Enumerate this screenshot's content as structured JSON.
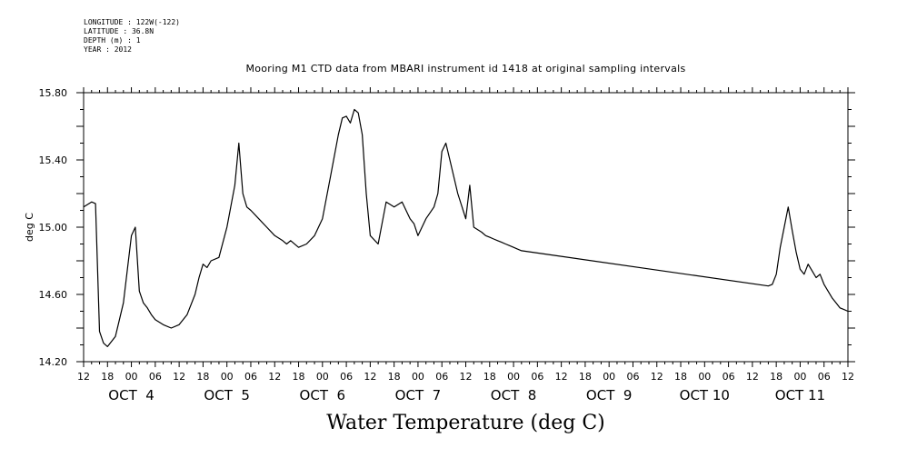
{
  "meta": {
    "longitude": "LONGITUDE : 122W(-122)",
    "latitude": "LATITUDE : 36.8N",
    "depth": "DEPTH (m) : 1",
    "year": "YEAR : 2012"
  },
  "chart_data": {
    "type": "line",
    "title": "Mooring M1 CTD data from MBARI instrument id 1418 at original sampling intervals",
    "xlabel": "Water Temperature (deg C)",
    "ylabel": "deg C",
    "ylim": [
      14.2,
      15.8
    ],
    "xlim": [
      "2012-10-03T12:00",
      "2012-10-11T12:00"
    ],
    "grid": false,
    "y_ticks": [
      "14.20",
      "14.60",
      "15.00",
      "15.40",
      "15.80"
    ],
    "x_hour_ticks": [
      "12",
      "18",
      "00",
      "06",
      "12",
      "18",
      "00",
      "06",
      "12",
      "18",
      "00",
      "06",
      "12",
      "18",
      "00",
      "06",
      "12",
      "18",
      "00",
      "06",
      "12",
      "18",
      "00",
      "06",
      "12",
      "18",
      "00",
      "06",
      "12",
      "18",
      "00",
      "06",
      "12"
    ],
    "x_day_labels": [
      "OCT  4",
      "OCT  5",
      "OCT  6",
      "OCT  7",
      "OCT  8",
      "OCT  9",
      "OCT 10",
      "OCT 11"
    ],
    "series": [
      {
        "x": [
          "10-03 12:00",
          "10-03 14:00",
          "10-03 15:00",
          "10-03 16:00",
          "10-03 17:00",
          "10-03 18:00",
          "10-03 19:00",
          "10-03 20:00",
          "10-03 21:00",
          "10-03 22:00",
          "10-03 23:00",
          "10-04 00:00",
          "10-04 01:00",
          "10-04 02:00",
          "10-04 03:00",
          "10-04 04:00",
          "10-04 05:00",
          "10-04 06:00",
          "10-04 08:00",
          "10-04 10:00",
          "10-04 12:00",
          "10-04 14:00",
          "10-04 16:00",
          "10-04 17:00",
          "10-04 18:00",
          "10-04 19:00",
          "10-04 20:00",
          "10-04 22:00",
          "10-05 00:00",
          "10-05 02:00",
          "10-05 03:00",
          "10-05 04:00",
          "10-05 05:00",
          "10-05 06:00",
          "10-05 08:00",
          "10-05 10:00",
          "10-05 12:00",
          "10-05 14:00",
          "10-05 15:00",
          "10-05 16:00",
          "10-05 18:00",
          "10-05 20:00",
          "10-05 22:00",
          "10-06 00:00",
          "10-06 02:00",
          "10-06 04:00",
          "10-06 05:00",
          "10-06 06:00",
          "10-06 07:00",
          "10-06 08:00",
          "10-06 09:00",
          "10-06 10:00",
          "10-06 11:00",
          "10-06 12:00",
          "10-06 14:00",
          "10-06 16:00",
          "10-06 18:00",
          "10-06 20:00",
          "10-06 21:00",
          "10-06 22:00",
          "10-06 23:00",
          "10-07 00:00",
          "10-07 02:00",
          "10-07 04:00",
          "10-07 05:00",
          "10-07 06:00",
          "10-07 07:00",
          "10-07 08:00",
          "10-07 10:00",
          "10-07 12:00",
          "10-07 13:00",
          "10-07 14:00",
          "10-07 16:00",
          "10-07 17:00",
          "10-07 18:00",
          "10-07 19:00",
          "10-07 20:00",
          "10-07 21:00",
          "10-07 22:00",
          "10-07 23:00",
          "10-08 00:00",
          "10-08 01:00",
          "10-08 02:00",
          "10-10 16:00",
          "10-10 17:00",
          "10-10 18:00",
          "10-10 19:00",
          "10-10 20:00",
          "10-10 21:00",
          "10-10 22:00",
          "10-10 23:00",
          "10-11 00:00",
          "10-11 01:00",
          "10-11 02:00",
          "10-11 03:00",
          "10-11 04:00",
          "10-11 05:00",
          "10-11 06:00",
          "10-11 07:00",
          "10-11 08:00",
          "10-11 09:00",
          "10-11 10:00",
          "10-11 11:00",
          "10-11 12:00"
        ],
        "values": [
          15.12,
          15.15,
          15.14,
          14.38,
          14.31,
          14.29,
          14.32,
          14.35,
          14.45,
          14.55,
          14.75,
          14.95,
          15.0,
          14.62,
          14.55,
          14.52,
          14.48,
          14.45,
          14.42,
          14.4,
          14.42,
          14.48,
          14.6,
          14.7,
          14.78,
          14.76,
          14.8,
          14.82,
          15.0,
          15.25,
          15.5,
          15.2,
          15.12,
          15.1,
          15.05,
          15.0,
          14.95,
          14.92,
          14.9,
          14.92,
          14.88,
          14.9,
          14.95,
          15.05,
          15.3,
          15.55,
          15.65,
          15.66,
          15.62,
          15.7,
          15.68,
          15.55,
          15.2,
          14.95,
          14.9,
          15.15,
          15.12,
          15.15,
          15.1,
          15.05,
          15.02,
          14.95,
          15.05,
          15.12,
          15.2,
          15.45,
          15.5,
          15.4,
          15.2,
          15.05,
          15.25,
          15.0,
          14.97,
          14.95,
          14.94,
          14.93,
          14.92,
          14.91,
          14.9,
          14.89,
          14.88,
          14.87,
          14.86,
          14.65,
          14.66,
          14.72,
          14.88,
          15.0,
          15.12,
          14.98,
          14.85,
          14.75,
          14.72,
          14.78,
          14.74,
          14.7,
          14.72,
          14.66,
          14.62,
          14.58,
          14.55,
          14.52,
          14.51,
          14.5
        ]
      }
    ]
  }
}
